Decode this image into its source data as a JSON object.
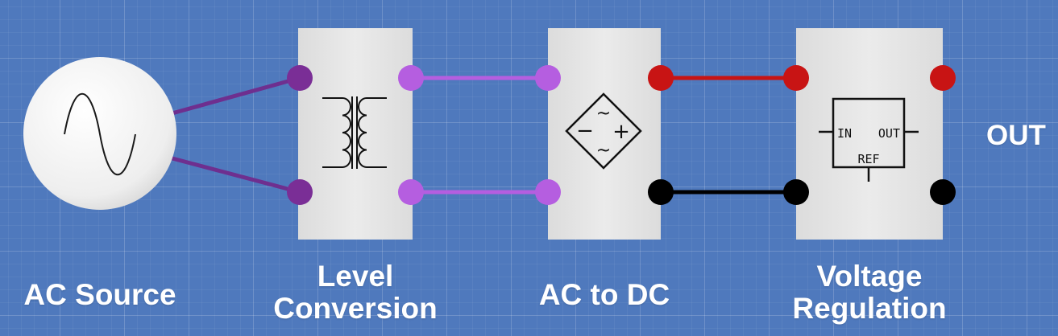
{
  "blocks": {
    "ac_source": {
      "label": "AC Source"
    },
    "level_conversion": {
      "label_line1": "Level",
      "label_line2": "Conversion"
    },
    "ac_to_dc": {
      "label": "AC to DC"
    },
    "voltage_regulation": {
      "label_line1": "Voltage",
      "label_line2": "Regulation"
    }
  },
  "output_label": "OUT",
  "regulator_symbol": {
    "in": "IN",
    "out": "OUT",
    "ref": "REF"
  },
  "rectifier_symbol": {
    "minus": "−",
    "plus": "+",
    "ac1": "~",
    "ac2": "~"
  },
  "colors": {
    "background": "#4f79bd",
    "block": "#e2e2e2",
    "ac_wire": "#6e2f8f",
    "ac_terminal_dark": "#7a2e96",
    "ac_terminal_light": "#b55ee0",
    "ac_wire_light": "#b55ee0",
    "dc_positive": "#c81414",
    "dc_negative": "#000000"
  },
  "icons": [
    "sine-wave-icon",
    "transformer-icon",
    "bridge-rectifier-icon",
    "voltage-regulator-icon"
  ]
}
